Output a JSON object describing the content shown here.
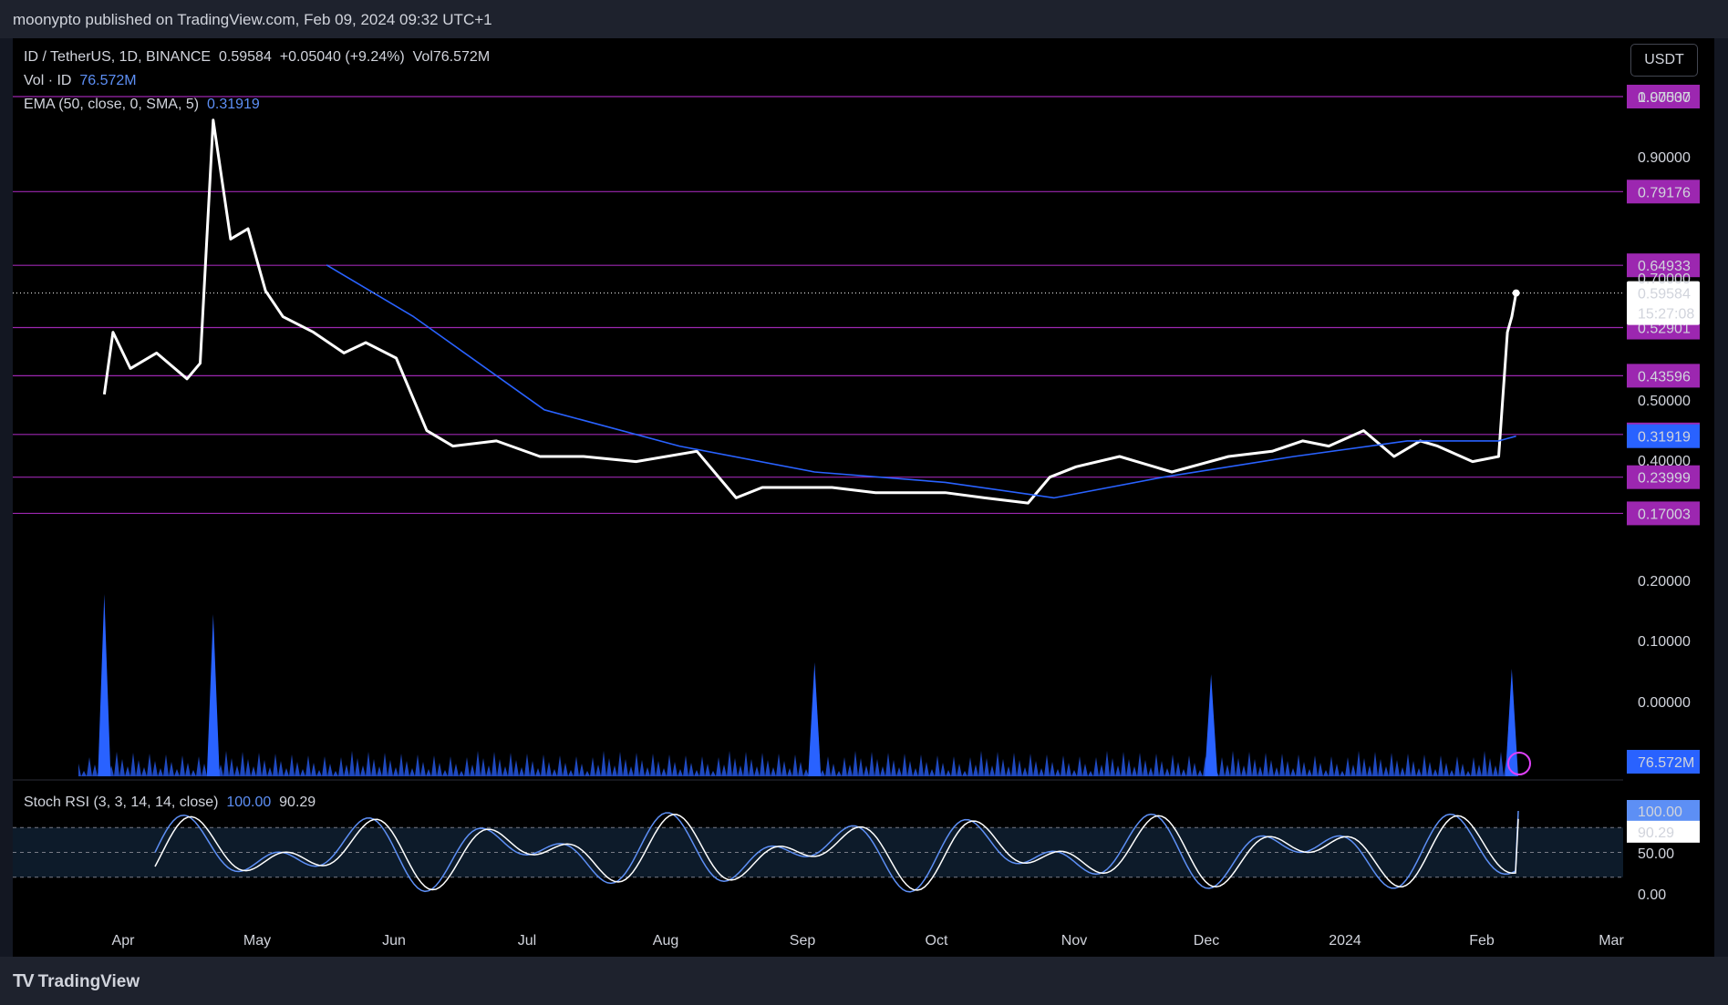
{
  "header": {
    "publisher_line": "moonypto published on TradingView.com, Feb 09, 2024 09:32 UTC+1"
  },
  "legend": {
    "symbol": "ID / TetherUS, 1D, BINANCE",
    "price": "0.59584",
    "change": "+0.05040 (+9.24%)",
    "vol_label": "Vol",
    "vol_value": "76.572M",
    "vol_line_label": "Vol · ID",
    "vol_line_value": "76.572M",
    "ema_label": "EMA (50, close, 0, SMA, 5)",
    "ema_value": "0.31919",
    "stoch_label": "Stoch RSI (3, 3, 14, 14, close)",
    "stoch_k": "100.00",
    "stoch_d": "90.29"
  },
  "currency_button": "USDT",
  "footer": {
    "brand": "TradingView"
  },
  "colors": {
    "background": "#000000",
    "price_line": "#ffffff",
    "ema": "#2962ff",
    "level": "#9c27b0",
    "volume": "#2962ff",
    "stoch_k": "#5d8ff5",
    "stoch_d": "#ffffff"
  },
  "chart_data": {
    "type": "line",
    "title": "ID / TetherUS, 1D, BINANCE",
    "y_ticks": [
      "1.00000",
      "0.90000",
      "0.70000",
      "0.50000",
      "0.40000",
      "0.20000",
      "0.10000",
      "0.00000"
    ],
    "x_ticks": [
      "Apr",
      "May",
      "Jun",
      "Jul",
      "Aug",
      "Sep",
      "Oct",
      "Nov",
      "Dec",
      "2024",
      "Feb",
      "Mar"
    ],
    "levels": [
      "0.97537",
      "0.79176",
      "0.64933",
      "0.52901",
      "0.43596",
      "0.32255",
      "0.23999",
      "0.17003"
    ],
    "last_price": "0.59584",
    "countdown": "15:27:08",
    "ema_last": "0.31919",
    "volume_last": "76.572M",
    "series": [
      {
        "name": "ID / TetherUS",
        "x": [
          "2023-03-22",
          "2023-03-24",
          "2023-03-28",
          "2023-04-03",
          "2023-04-10",
          "2023-04-13",
          "2023-04-16",
          "2023-04-20",
          "2023-04-24",
          "2023-04-28",
          "2023-05-02",
          "2023-05-09",
          "2023-05-16",
          "2023-05-21",
          "2023-05-28",
          "2023-06-04",
          "2023-06-10",
          "2023-06-20",
          "2023-06-30",
          "2023-07-10",
          "2023-07-22",
          "2023-08-05",
          "2023-08-14",
          "2023-08-20",
          "2023-09-05",
          "2023-09-15",
          "2023-10-01",
          "2023-10-10",
          "2023-10-20",
          "2023-10-25",
          "2023-10-31",
          "2023-11-10",
          "2023-11-22",
          "2023-12-05",
          "2023-12-15",
          "2023-12-22",
          "2023-12-28",
          "2024-01-05",
          "2024-01-12",
          "2024-01-18",
          "2024-01-22",
          "2024-01-30",
          "2024-02-05",
          "2024-02-07",
          "2024-02-08",
          "2024-02-09"
        ],
        "values": [
          0.4,
          0.52,
          0.45,
          0.48,
          0.43,
          0.46,
          0.93,
          0.7,
          0.72,
          0.6,
          0.55,
          0.52,
          0.48,
          0.5,
          0.47,
          0.33,
          0.3,
          0.31,
          0.28,
          0.28,
          0.27,
          0.29,
          0.2,
          0.22,
          0.22,
          0.21,
          0.21,
          0.2,
          0.19,
          0.24,
          0.26,
          0.28,
          0.25,
          0.28,
          0.29,
          0.31,
          0.3,
          0.33,
          0.28,
          0.31,
          0.3,
          0.27,
          0.28,
          0.52,
          0.55,
          0.59584
        ]
      },
      {
        "name": "EMA (50, close, 0, SMA, 5)",
        "x": [
          "2023-05-12",
          "2023-06-01",
          "2023-07-01",
          "2023-08-01",
          "2023-09-01",
          "2023-10-01",
          "2023-10-26",
          "2023-11-20",
          "2023-12-20",
          "2024-01-15",
          "2024-02-05",
          "2024-02-09"
        ],
        "values": [
          0.65,
          0.55,
          0.37,
          0.3,
          0.25,
          0.23,
          0.2,
          0.24,
          0.28,
          0.31,
          0.31,
          0.31919
        ]
      }
    ],
    "stoch_rsi": {
      "k_last": 100.0,
      "d_last": 90.29,
      "bands": [
        80,
        50,
        20
      ],
      "ticks": [
        "100.00",
        "50.00",
        "0.00"
      ]
    },
    "volume_peaks": [
      "2023-03-22",
      "2023-04-16",
      "2023-09-01",
      "2023-12-01",
      "2024-02-08"
    ]
  }
}
